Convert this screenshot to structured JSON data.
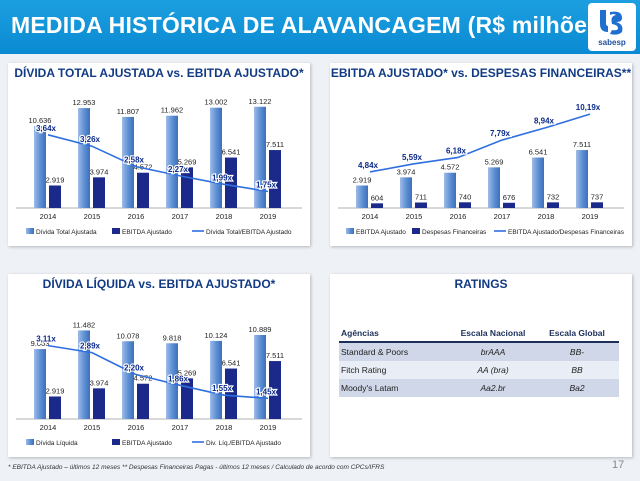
{
  "page": {
    "title": "MEDIDA HISTÓRICA DE ALAVANCAGEM (R$ milhões)",
    "logo_text": "sabesp",
    "page_number": "17",
    "footnote": "* EBITDA Ajustado – últimos 12 meses    ** Despesas Financeiras  Pagas - últimos 12 meses / Calculado de acordo com CPCs/IFRS",
    "colors": {
      "banner": "#0a8ad2",
      "bar_light": "#5b8ed4",
      "bar_dark": "#1b2a8a",
      "line": "#2f6fe0",
      "title_text": "#113a85"
    }
  },
  "chart_data": [
    {
      "type": "bar",
      "title": "DÍVIDA TOTAL AJUSTADA vs. EBITDA AJUSTADO*",
      "categories": [
        "2014",
        "2015",
        "2016",
        "2017",
        "2018",
        "2019"
      ],
      "series": [
        {
          "name": "Dívida Total Ajustada",
          "values": [
            10636,
            12953,
            11807,
            11962,
            13002,
            13122
          ],
          "labels": [
            "10.636",
            "12.953",
            "11.807",
            "11.962",
            "13.002",
            "13.122"
          ]
        },
        {
          "name": "EBITDA Ajustado",
          "values": [
            2919,
            3974,
            4572,
            5269,
            6541,
            7511
          ],
          "labels": [
            "2.919",
            "3.974",
            "4.572",
            "5.269",
            "6.541",
            "7.511"
          ]
        },
        {
          "name": "Dívida Total/EBITDA Ajustado",
          "kind": "line",
          "values": [
            3.64,
            3.26,
            2.58,
            2.27,
            1.99,
            1.75
          ],
          "labels": [
            "3,64x",
            "3,26x",
            "2,58x",
            "2,27x",
            "1,99x",
            "1,75x"
          ]
        }
      ]
    },
    {
      "type": "bar",
      "title": "EBITDA AJUSTADO* vs. DESPESAS FINANCEIRAS**",
      "categories": [
        "2014",
        "2015",
        "2016",
        "2017",
        "2018",
        "2019"
      ],
      "series": [
        {
          "name": "EBITDA Ajustado",
          "values": [
            2919,
            3974,
            4572,
            5269,
            6541,
            7511
          ],
          "labels": [
            "2.919",
            "3.974",
            "4.572",
            "5.269",
            "6.541",
            "7.511"
          ]
        },
        {
          "name": "Despesas Financeiras",
          "values": [
            604,
            711,
            740,
            676,
            732,
            737
          ],
          "labels": [
            "604",
            "711",
            "740",
            "676",
            "732",
            "737"
          ]
        },
        {
          "name": "EBITDA Ajustado/Despesas Financeiras",
          "kind": "line",
          "values": [
            4.84,
            5.59,
            6.18,
            7.79,
            8.94,
            10.19
          ],
          "labels": [
            "4,84x",
            "5,59x",
            "6,18x",
            "7,79x",
            "8,94x",
            "10,19x"
          ]
        }
      ]
    },
    {
      "type": "bar",
      "title": "DÍVIDA LÍQUIDA vs. EBITDA AJUSTADO*",
      "categories": [
        "2014",
        "2015",
        "2016",
        "2017",
        "2018",
        "2019"
      ],
      "series": [
        {
          "name": "Dívida Líquida",
          "values": [
            9063,
            11482,
            10078,
            9818,
            10124,
            10889
          ],
          "labels": [
            "9.063",
            "11.482",
            "10.078",
            "9.818",
            "10.124",
            "10.889"
          ]
        },
        {
          "name": "EBITDA Ajustado",
          "values": [
            2919,
            3974,
            4572,
            5269,
            6541,
            7511
          ],
          "labels": [
            "2.919",
            "3.974",
            "4.572",
            "5.269",
            "6.541",
            "7.511"
          ]
        },
        {
          "name": "Div. Líq./EBITDA Ajustado",
          "kind": "line",
          "values": [
            3.11,
            2.89,
            2.2,
            1.86,
            1.55,
            1.45
          ],
          "labels": [
            "3,11x",
            "2,89x",
            "2,20x",
            "1,86x",
            "1,55x",
            "1,45x"
          ]
        }
      ]
    }
  ],
  "ratings": {
    "title": "RATINGS",
    "headers": [
      "Agências",
      "Escala Nacional",
      "Escala Global"
    ],
    "rows": [
      [
        "Standard & Poors",
        "brAAA",
        "BB-"
      ],
      [
        "Fitch Rating",
        "AA (bra)",
        "BB"
      ],
      [
        "Moody's Latam",
        "Aa2.br",
        "Ba2"
      ]
    ]
  }
}
